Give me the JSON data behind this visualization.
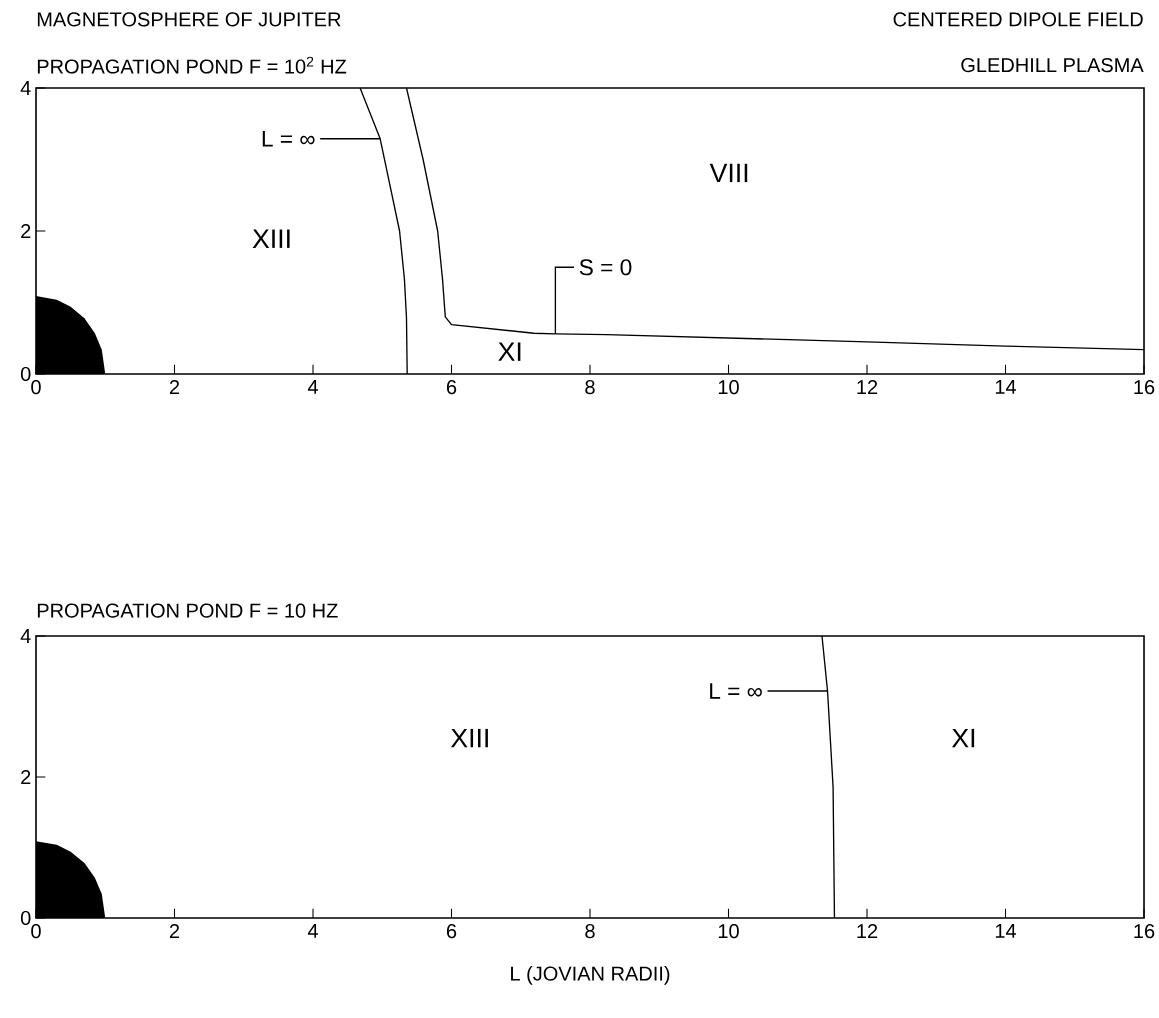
{
  "chart_data": [
    {
      "type": "line",
      "title": "MAGNETOSPHERE OF JUPITER",
      "subtitle": "PROPAGATION POND    F = 10$^{2}$ HZ",
      "xlim": [
        0,
        16
      ],
      "ylim": [
        0,
        4
      ],
      "xticks": [
        0,
        2,
        4,
        6,
        8,
        10,
        12,
        14,
        16
      ],
      "yticks": [
        0,
        2,
        4
      ],
      "grid": false,
      "marker": "none",
      "line_style": "solid",
      "series": [
        {
          "type": "area",
          "color": "#000000",
          "x": [
            0,
            0.3,
            0.5,
            0.7,
            0.85,
            0.95,
            1.0
          ],
          "values": [
            1.09,
            1.04,
            0.94,
            0.78,
            0.57,
            0.34,
            0
          ]
        },
        {
          "color": "#000000",
          "x": [
            4.68,
            4.97,
            5.25,
            5.32,
            5.35,
            5.36
          ],
          "values": [
            4,
            3.29,
            2.0,
            1.33,
            0.78,
            0
          ]
        },
        {
          "color": "#000000",
          "x": [
            5.35,
            5.59,
            5.8,
            5.87,
            5.91,
            6.0,
            7.19,
            7.5,
            8.24,
            12,
            14,
            16
          ],
          "values": [
            4,
            3.0,
            2.0,
            1.33,
            0.8,
            0.69,
            0.57,
            0.56,
            0.55,
            0.45,
            0.39,
            0.34
          ]
        }
      ],
      "annotations": [
        "CENTERED DIPOLE FIELD",
        "GLEDHILL PLASMA",
        {
          "text": "L = ∞",
          "x": 4.97,
          "y": 3.29
        },
        {
          "text": "S = 0",
          "x": 7.5,
          "y": 0.56
        },
        "XIII",
        "VIII",
        "XI"
      ]
    },
    {
      "type": "line",
      "title": "PROPAGATION POND    F = 10 HZ",
      "xlabel": "L (JOVIAN RADII)",
      "xlim": [
        0,
        16
      ],
      "ylim": [
        0,
        4
      ],
      "xticks": [
        0,
        2,
        4,
        6,
        8,
        10,
        12,
        14,
        16
      ],
      "yticks": [
        0,
        2,
        4
      ],
      "grid": false,
      "marker": "none",
      "line_style": "solid",
      "series": [
        {
          "type": "area",
          "color": "#000000",
          "x": [
            0,
            0.3,
            0.5,
            0.7,
            0.85,
            0.95,
            1.0
          ],
          "values": [
            1.09,
            1.04,
            0.94,
            0.78,
            0.57,
            0.34,
            0
          ]
        },
        {
          "color": "#000000",
          "x": [
            11.35,
            11.43,
            11.51,
            11.53
          ],
          "values": [
            4,
            3.22,
            1.86,
            0
          ]
        }
      ],
      "annotations": [
        {
          "text": "L = ∞",
          "x": 11.43,
          "y": 3.22
        },
        "XIII",
        "XI"
      ]
    }
  ]
}
